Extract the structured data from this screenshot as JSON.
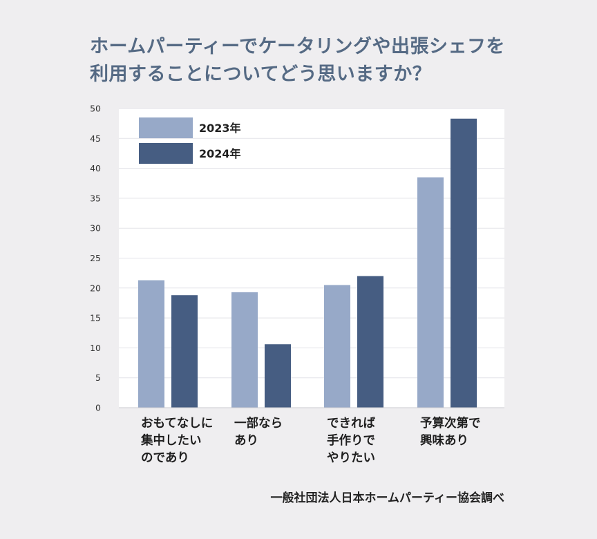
{
  "title": {
    "line1": "ホームパーティーでケータリングや出張シェフを",
    "line2": "利用することについてどう思いますか？"
  },
  "source": "一般社団法人日本ホームパーティー協会調べ",
  "colors": {
    "series_2023": "#97a9c8",
    "series_2024": "#465d82",
    "title": "#556a84",
    "plot_bg": "#ffffff",
    "grid": "#e3e3e8"
  },
  "chart_data": {
    "type": "bar",
    "categories": [
      [
        "おもてなしに",
        "集中したい",
        "のであり"
      ],
      [
        "一部なら",
        "あり"
      ],
      [
        "できれば",
        "手作りで",
        "やりたい"
      ],
      [
        "予算次第で",
        "興味あり"
      ]
    ],
    "series": [
      {
        "name": "2023年",
        "values": [
          21.3,
          19.3,
          20.5,
          38.5
        ]
      },
      {
        "name": "2024年",
        "values": [
          18.8,
          10.6,
          22.0,
          48.3
        ]
      }
    ],
    "ylim": [
      0,
      50
    ],
    "yticks": [
      0,
      5,
      10,
      15,
      20,
      25,
      30,
      35,
      40,
      45,
      50
    ],
    "grid": true,
    "legend_position": "top-left"
  }
}
